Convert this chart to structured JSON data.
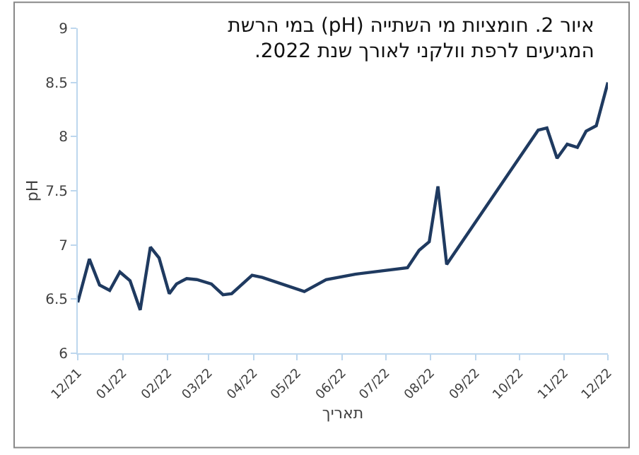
{
  "chart_data": {
    "type": "line",
    "title": "איור 2. חומציות מי השתייה (pH) במי הרשת\nהמגיעים לרפת וולקני לאורך שנת 2022.",
    "xlabel": "תאריך",
    "ylabel": "pH",
    "x": [
      "2021-12-01",
      "2021-12-09",
      "2021-12-16",
      "2021-12-23",
      "2021-12-30",
      "2022-01-06",
      "2022-01-13",
      "2022-01-20",
      "2022-01-26",
      "2022-02-02",
      "2022-02-07",
      "2022-02-14",
      "2022-02-21",
      "2022-03-03",
      "2022-03-11",
      "2022-03-17",
      "2022-03-31",
      "2022-04-07",
      "2022-05-06",
      "2022-05-21",
      "2022-06-10",
      "2022-07-16",
      "2022-07-24",
      "2022-07-31",
      "2022-08-06",
      "2022-08-12",
      "2022-10-14",
      "2022-10-20",
      "2022-10-27",
      "2022-11-03",
      "2022-11-10",
      "2022-11-16",
      "2022-11-23",
      "2022-12-01"
    ],
    "series": [
      {
        "color": "#1f3a60",
        "values": [
          6.47,
          6.87,
          6.63,
          6.58,
          6.75,
          6.67,
          6.4,
          6.98,
          6.88,
          6.55,
          6.64,
          6.69,
          6.68,
          6.64,
          6.54,
          6.55,
          6.72,
          6.7,
          6.57,
          6.68,
          6.73,
          6.79,
          6.95,
          7.03,
          7.54,
          6.82,
          8.06,
          8.08,
          7.8,
          7.93,
          7.9,
          8.05,
          8.1,
          8.5
        ]
      }
    ],
    "xlim": [
      "2021-12-01",
      "2022-12-01"
    ],
    "xticks": [
      {
        "value": "2021-12-01",
        "label": "12/21"
      },
      {
        "value": "2022-01-01",
        "label": "01/22"
      },
      {
        "value": "2022-02-01",
        "label": "02/22"
      },
      {
        "value": "2022-03-01",
        "label": "03/22"
      },
      {
        "value": "2022-04-01",
        "label": "04/22"
      },
      {
        "value": "2022-05-01",
        "label": "05/22"
      },
      {
        "value": "2022-06-01",
        "label": "06/22"
      },
      {
        "value": "2022-07-01",
        "label": "07/22"
      },
      {
        "value": "2022-08-01",
        "label": "08/22"
      },
      {
        "value": "2022-09-01",
        "label": "09/22"
      },
      {
        "value": "2022-10-01",
        "label": "10/22"
      },
      {
        "value": "2022-11-01",
        "label": "11/22"
      },
      {
        "value": "2022-12-01",
        "label": "12/22"
      }
    ],
    "ylim": [
      6,
      9
    ],
    "yticks": [
      6,
      6.5,
      7,
      7.5,
      8,
      8.5,
      9
    ],
    "marker": "none",
    "line_style": "solid"
  }
}
